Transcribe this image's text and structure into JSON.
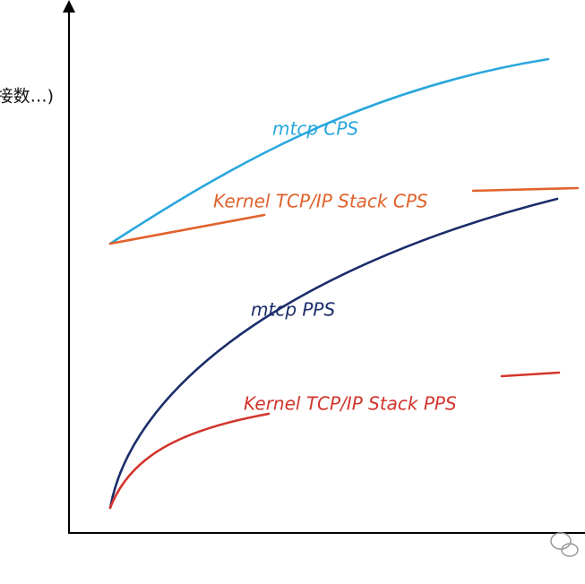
{
  "axis_label": "接数…)",
  "curves": [
    {
      "label": "mtcp CPS"
    },
    {
      "label": "Kernel TCP/IP Stack CPS"
    },
    {
      "label": "mtcp PPS"
    },
    {
      "label": "Kernel TCP/IP Stack PPS"
    }
  ]
}
